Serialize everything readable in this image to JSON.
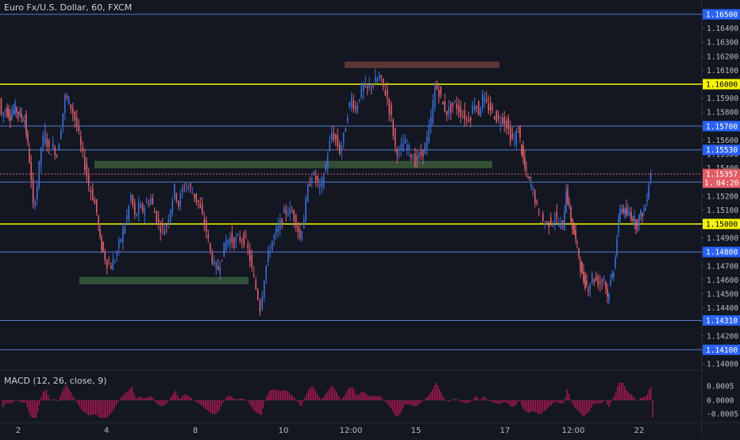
{
  "window": {
    "symbol_title": "Euro Fx/U.S. Dollar, 60, FXCM"
  },
  "indicator": {
    "label": "MACD (12, 26, close, 9)"
  },
  "colors": {
    "background": "#131722",
    "bull": "#3b6fd8",
    "bear": "#e0606b",
    "horizontal_line": "#5a78c8",
    "yellow_line": "#f5f500",
    "support_zone": "#3a5a3a",
    "resistance_zone": "#6a3b3b",
    "price_tag": "#e35c66",
    "line_tag": "#2962ff",
    "yellow_tag": "#f5f500",
    "macd_hist": "#c2185b"
  },
  "chart_data": {
    "type": "candlestick",
    "price_axis_ticks": [
      "1.16500",
      "1.16400",
      "1.16300",
      "1.16200",
      "1.16100",
      "1.16000",
      "1.15900",
      "1.15800",
      "1.15700",
      "1.15600",
      "1.15500",
      "1.15400",
      "1.15300",
      "1.15200",
      "1.15100",
      "1.15000",
      "1.14900",
      "1.14800",
      "1.14700",
      "1.14600",
      "1.14500",
      "1.14400",
      "1.14300",
      "1.14200",
      "1.14100",
      "1.14000"
    ],
    "time_axis_labels": [
      "2",
      "4",
      "8",
      "10",
      "12:00",
      "15",
      "17",
      "12:00",
      "22"
    ],
    "horizontal_lines": [
      {
        "price": "1.16500",
        "style": "blue"
      },
      {
        "price": "1.16000",
        "style": "yellow"
      },
      {
        "price": "1.15700",
        "style": "blue"
      },
      {
        "price": "1.15530",
        "style": "blue"
      },
      {
        "price": "1.15300",
        "style": "blue"
      },
      {
        "price": "1.15000",
        "style": "yellow"
      },
      {
        "price": "1.14800",
        "style": "blue"
      },
      {
        "price": "1.14310",
        "style": "blue"
      },
      {
        "price": "1.14100",
        "style": "blue"
      }
    ],
    "current_price": {
      "price": "1.15357",
      "countdown": "04:20",
      "prefix": "1."
    },
    "zones": [
      {
        "type": "resistance",
        "price_top": 1.1615,
        "price_bottom": 1.1613
      },
      {
        "type": "support",
        "price_top": 1.1544,
        "price_bottom": 1.1541
      },
      {
        "type": "support",
        "price_top": 1.1461,
        "price_bottom": 1.1458
      }
    ],
    "ylim": [
      1.1395,
      1.1655
    ],
    "macd_axis_ticks": [
      "0.0005",
      "0.0000",
      "-0.0005"
    ],
    "series_points": [
      [
        0,
        1.159
      ],
      [
        3,
        1.1578
      ],
      [
        8,
        1.1582
      ],
      [
        14,
        1.1578
      ],
      [
        20,
        1.1583
      ],
      [
        26,
        1.1578
      ],
      [
        32,
        1.1575
      ],
      [
        38,
        1.1546
      ],
      [
        43,
        1.1512
      ],
      [
        48,
        1.1528
      ],
      [
        53,
        1.1555
      ],
      [
        58,
        1.1565
      ],
      [
        63,
        1.1552
      ],
      [
        68,
        1.1555
      ],
      [
        73,
        1.155
      ],
      [
        78,
        1.157
      ],
      [
        83,
        1.159
      ],
      [
        88,
        1.1588
      ],
      [
        93,
        1.158
      ],
      [
        98,
        1.157
      ],
      [
        103,
        1.1555
      ],
      [
        108,
        1.1542
      ],
      [
        113,
        1.1528
      ],
      [
        118,
        1.152
      ],
      [
        123,
        1.1508
      ],
      [
        127,
        1.1488
      ],
      [
        131,
        1.148
      ],
      [
        136,
        1.1472
      ],
      [
        141,
        1.147
      ],
      [
        146,
        1.1475
      ],
      [
        151,
        1.1485
      ],
      [
        156,
        1.1495
      ],
      [
        161,
        1.1505
      ],
      [
        166,
        1.152
      ],
      [
        171,
        1.1505
      ],
      [
        176,
        1.1512
      ],
      [
        181,
        1.151
      ],
      [
        186,
        1.1515
      ],
      [
        191,
        1.1518
      ],
      [
        196,
        1.1508
      ],
      [
        201,
        1.15
      ],
      [
        206,
        1.1496
      ],
      [
        211,
        1.15
      ],
      [
        216,
        1.1512
      ],
      [
        221,
        1.1525
      ],
      [
        226,
        1.1514
      ],
      [
        231,
        1.1525
      ],
      [
        236,
        1.1528
      ],
      [
        241,
        1.1525
      ],
      [
        246,
        1.152
      ],
      [
        251,
        1.1515
      ],
      [
        256,
        1.1505
      ],
      [
        261,
        1.1495
      ],
      [
        266,
        1.148
      ],
      [
        271,
        1.147
      ],
      [
        276,
        1.1468
      ],
      [
        281,
        1.1478
      ],
      [
        286,
        1.1488
      ],
      [
        291,
        1.149
      ],
      [
        296,
        1.1487
      ],
      [
        301,
        1.1489
      ],
      [
        306,
        1.149
      ],
      [
        311,
        1.1487
      ],
      [
        316,
        1.1475
      ],
      [
        321,
        1.146
      ],
      [
        326,
        1.1448
      ],
      [
        329,
        1.144
      ],
      [
        334,
        1.1462
      ],
      [
        339,
        1.1478
      ],
      [
        344,
        1.1488
      ],
      [
        349,
        1.1494
      ],
      [
        354,
        1.15
      ],
      [
        359,
        1.1508
      ],
      [
        364,
        1.151
      ],
      [
        369,
        1.1508
      ],
      [
        374,
        1.1502
      ],
      [
        379,
        1.149
      ],
      [
        384,
        1.1505
      ],
      [
        389,
        1.1525
      ],
      [
        394,
        1.1536
      ],
      [
        399,
        1.1532
      ],
      [
        404,
        1.1525
      ],
      [
        409,
        1.1535
      ],
      [
        414,
        1.155
      ],
      [
        419,
        1.1565
      ],
      [
        424,
        1.156
      ],
      [
        429,
        1.1552
      ],
      [
        434,
        1.1562
      ],
      [
        439,
        1.158
      ],
      [
        444,
        1.159
      ],
      [
        449,
        1.1582
      ],
      [
        454,
        1.1592
      ],
      [
        459,
        1.1598
      ],
      [
        464,
        1.1596
      ],
      [
        469,
        1.16
      ],
      [
        474,
        1.1602
      ],
      [
        479,
        1.1605
      ],
      [
        484,
        1.1598
      ],
      [
        489,
        1.159
      ],
      [
        494,
        1.1575
      ],
      [
        499,
        1.1555
      ],
      [
        504,
        1.155
      ],
      [
        509,
        1.1558
      ],
      [
        514,
        1.1556
      ],
      [
        519,
        1.155
      ],
      [
        524,
        1.1545
      ],
      [
        529,
        1.1548
      ],
      [
        534,
        1.1552
      ],
      [
        539,
        1.156
      ],
      [
        544,
        1.1575
      ],
      [
        549,
        1.1598
      ],
      [
        554,
        1.1595
      ],
      [
        559,
        1.1585
      ],
      [
        564,
        1.158
      ],
      [
        569,
        1.1583
      ],
      [
        574,
        1.1586
      ],
      [
        579,
        1.1582
      ],
      [
        584,
        1.1578
      ],
      [
        589,
        1.1575
      ],
      [
        594,
        1.1578
      ],
      [
        599,
        1.1588
      ],
      [
        604,
        1.158
      ],
      [
        609,
        1.159
      ],
      [
        614,
        1.1585
      ],
      [
        619,
        1.1582
      ],
      [
        624,
        1.1578
      ],
      [
        629,
        1.1574
      ],
      [
        634,
        1.1576
      ],
      [
        639,
        1.1572
      ],
      [
        644,
        1.1562
      ],
      [
        649,
        1.156
      ],
      [
        654,
        1.1568
      ],
      [
        658,
        1.1552
      ],
      [
        662,
        1.154
      ],
      [
        666,
        1.1532
      ],
      [
        670,
        1.1528
      ],
      [
        675,
        1.1518
      ],
      [
        680,
        1.1505
      ],
      [
        685,
        1.1502
      ],
      [
        690,
        1.15
      ],
      [
        695,
        1.1502
      ],
      [
        700,
        1.1505
      ],
      [
        705,
        1.15
      ],
      [
        710,
        1.1498
      ],
      [
        714,
        1.1525
      ],
      [
        718,
        1.151
      ],
      [
        722,
        1.1498
      ],
      [
        726,
        1.1488
      ],
      [
        730,
        1.1478
      ],
      [
        734,
        1.1462
      ],
      [
        738,
        1.1458
      ],
      [
        742,
        1.1455
      ],
      [
        747,
        1.1462
      ],
      [
        752,
        1.146
      ],
      [
        757,
        1.1458
      ],
      [
        762,
        1.1462
      ],
      [
        766,
        1.1448
      ],
      [
        770,
        1.1458
      ],
      [
        774,
        1.1468
      ],
      [
        778,
        1.149
      ],
      [
        782,
        1.1512
      ],
      [
        786,
        1.151
      ],
      [
        790,
        1.1506
      ],
      [
        794,
        1.1508
      ],
      [
        798,
        1.1505
      ],
      [
        802,
        1.15
      ],
      [
        806,
        1.1505
      ],
      [
        810,
        1.1508
      ],
      [
        814,
        1.1512
      ],
      [
        818,
        1.153
      ],
      [
        821,
        1.1538
      ]
    ]
  }
}
